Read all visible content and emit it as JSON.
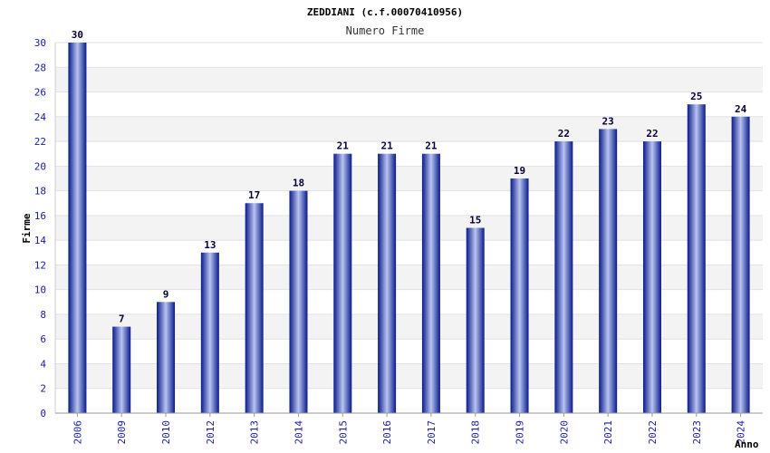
{
  "chart_data": {
    "type": "bar",
    "title": "ZEDDIANI (c.f.00070410956)",
    "subtitle": "Numero Firme",
    "xlabel": "Anno",
    "ylabel": "Firme",
    "categories": [
      "2006",
      "2009",
      "2010",
      "2012",
      "2013",
      "2014",
      "2015",
      "2016",
      "2017",
      "2018",
      "2019",
      "2020",
      "2021",
      "2022",
      "2023",
      "2024"
    ],
    "values": [
      30,
      7,
      9,
      13,
      17,
      18,
      21,
      21,
      21,
      15,
      19,
      22,
      23,
      22,
      25,
      24
    ],
    "ylim": [
      0,
      30
    ],
    "yticks": [
      "0",
      "2",
      "4",
      "6",
      "8",
      "10",
      "12",
      "14",
      "16",
      "18",
      "20",
      "22",
      "24",
      "26",
      "28",
      "30"
    ],
    "grid": true,
    "colors": {
      "bar_dark": "#0a1a8a",
      "bar_light": "#b8c4f0",
      "band": "#f3f3f3",
      "tick_text": "#1a1aa6"
    }
  }
}
